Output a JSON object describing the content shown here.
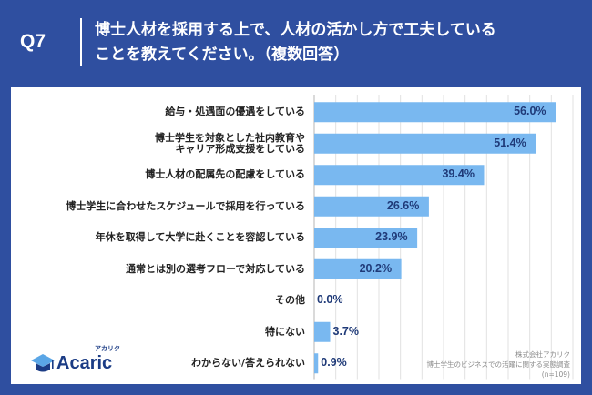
{
  "header": {
    "question": "Q7",
    "title_line1": "博士人材を採用する上で、人材の活かし方で工夫している",
    "title_line2": "ことを教えてください。（複数回答）"
  },
  "chart_data": {
    "type": "bar",
    "orientation": "horizontal",
    "categories": [
      [
        "給与・処遇面の優遇をしている"
      ],
      [
        "博士学生を対象とした社内教育や",
        "キャリア形成支援をしている"
      ],
      [
        "博士人材の配属先の配慮をしている"
      ],
      [
        "博士学生に合わせたスケジュールで採用を行っている"
      ],
      [
        "年休を取得して大学に赴くことを容認している"
      ],
      [
        "通常とは別の選考フローで対応している"
      ],
      [
        "その他"
      ],
      [
        "特にない"
      ],
      [
        "わからない/答えられない"
      ]
    ],
    "values": [
      56.0,
      51.4,
      39.4,
      26.6,
      23.9,
      20.2,
      0.0,
      3.7,
      0.9
    ],
    "value_labels": [
      "56.0%",
      "51.4%",
      "39.4%",
      "26.6%",
      "23.9%",
      "20.2%",
      "0.0%",
      "3.7%",
      "0.9%"
    ],
    "xlim": [
      0,
      60
    ],
    "grid": true,
    "bar_color": "#79b8f0",
    "label_color": "#1f3a78"
  },
  "colors": {
    "frame": "#2f4fa0",
    "bar": "#79b8f0"
  },
  "footer": {
    "company": "株式会社アカリク",
    "survey": "博士学生のビジネスでの活躍に関する実態調査",
    "sample": "(n=109)"
  },
  "logo": {
    "name": "Acaric",
    "kana": "アカリク",
    "icon": "graduation-cap-icon"
  }
}
